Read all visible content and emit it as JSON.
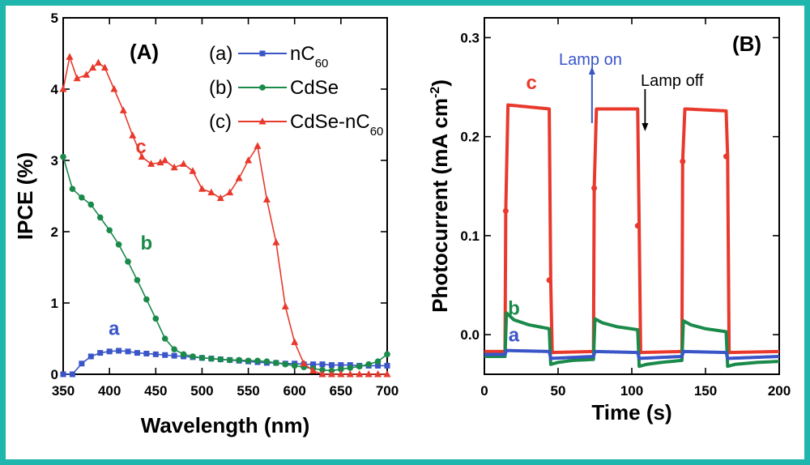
{
  "chart_data": [
    {
      "type": "line",
      "panel_label": "(A)",
      "xlabel": "Wavelength (nm)",
      "ylabel": "IPCE (%)",
      "xlim": [
        350,
        700
      ],
      "ylim": [
        0,
        5
      ],
      "xticks": [
        350,
        400,
        450,
        500,
        550,
        600,
        650,
        700
      ],
      "yticks": [
        0,
        1,
        2,
        3,
        4,
        5
      ],
      "legend_placement": "top-right",
      "series": [
        {
          "name": "nC60",
          "legend_prefix": "(a)",
          "legend_main": "nC",
          "legend_sub": "60",
          "curve_label": "a",
          "color": "#3a55c8",
          "marker": "square",
          "label_pos": [
            405,
            0.55
          ],
          "x": [
            350,
            360,
            370,
            380,
            390,
            400,
            410,
            420,
            430,
            440,
            450,
            460,
            470,
            480,
            490,
            500,
            510,
            520,
            530,
            540,
            550,
            560,
            570,
            580,
            590,
            600,
            610,
            620,
            630,
            640,
            650,
            660,
            670,
            680,
            690,
            700
          ],
          "values": [
            0.0,
            0.0,
            0.15,
            0.25,
            0.3,
            0.32,
            0.33,
            0.32,
            0.3,
            0.29,
            0.28,
            0.27,
            0.26,
            0.25,
            0.24,
            0.23,
            0.22,
            0.21,
            0.2,
            0.19,
            0.18,
            0.17,
            0.16,
            0.16,
            0.15,
            0.15,
            0.14,
            0.14,
            0.14,
            0.13,
            0.13,
            0.13,
            0.12,
            0.12,
            0.12,
            0.12
          ]
        },
        {
          "name": "CdSe",
          "legend_prefix": "(b)",
          "legend_main": "CdSe",
          "legend_sub": "",
          "curve_label": "b",
          "color": "#1a8a4a",
          "marker": "circle",
          "label_pos": [
            440,
            1.75
          ],
          "x": [
            350,
            360,
            370,
            380,
            390,
            400,
            410,
            420,
            430,
            440,
            450,
            460,
            470,
            480,
            490,
            500,
            510,
            520,
            530,
            540,
            550,
            560,
            570,
            580,
            590,
            600,
            610,
            620,
            630,
            640,
            650,
            660,
            670,
            680,
            690,
            700
          ],
          "values": [
            3.05,
            2.6,
            2.48,
            2.38,
            2.2,
            2.02,
            1.82,
            1.58,
            1.32,
            1.05,
            0.78,
            0.5,
            0.35,
            0.28,
            0.25,
            0.23,
            0.22,
            0.21,
            0.2,
            0.2,
            0.19,
            0.19,
            0.18,
            0.16,
            0.14,
            0.12,
            0.1,
            0.08,
            0.06,
            0.05,
            0.07,
            0.09,
            0.11,
            0.14,
            0.18,
            0.28
          ]
        },
        {
          "name": "CdSe-nC60",
          "legend_prefix": "(c)",
          "legend_main": "CdSe-nC",
          "legend_sub": "60",
          "curve_label": "c",
          "color": "#e8392c",
          "marker": "triangle",
          "label_pos": [
            434,
            3.1
          ],
          "x": [
            350,
            357,
            365,
            375,
            382,
            388,
            395,
            405,
            415,
            425,
            435,
            445,
            455,
            460,
            470,
            480,
            490,
            500,
            510,
            520,
            530,
            540,
            550,
            560,
            570,
            580,
            590,
            600,
            610,
            620,
            630,
            640,
            650,
            660,
            670,
            680,
            690,
            700
          ],
          "values": [
            4.0,
            4.45,
            4.15,
            4.2,
            4.3,
            4.37,
            4.3,
            4.0,
            3.7,
            3.35,
            3.05,
            2.95,
            2.97,
            3.0,
            2.9,
            2.95,
            2.85,
            2.6,
            2.55,
            2.47,
            2.55,
            2.75,
            3.0,
            3.2,
            2.45,
            1.85,
            0.95,
            0.45,
            0.15,
            0.05,
            0.0,
            0.0,
            0.0,
            0.0,
            0.0,
            0.0,
            0.0,
            0.0
          ]
        }
      ]
    },
    {
      "type": "line",
      "panel_label": "(B)",
      "xlabel": "Time (s)",
      "ylabel": "Photocurrent (mA cm-2)",
      "xlim": [
        0,
        200
      ],
      "ylim": [
        -0.04,
        0.32
      ],
      "xticks": [
        0,
        50,
        100,
        150,
        200
      ],
      "yticks": [
        0.0,
        0.1,
        0.2,
        0.3
      ],
      "annotations": {
        "lamp_on": "Lamp on",
        "lamp_off": "Lamp off",
        "lamp_on_color": "#3a55c8",
        "lamp_off_color": "#000000"
      },
      "series": [
        {
          "curve_label": "c",
          "color": "#e8392c",
          "label_pos": [
            32,
            0.248
          ],
          "x": [
            0,
            14,
            14.5,
            16,
            44,
            45,
            46,
            74,
            74.5,
            76,
            104,
            105,
            106,
            134,
            134.5,
            136,
            164,
            165,
            166,
            200
          ],
          "values": [
            -0.017,
            -0.017,
            0.125,
            0.232,
            0.228,
            0.055,
            -0.018,
            -0.017,
            0.148,
            0.228,
            0.228,
            0.11,
            -0.018,
            -0.017,
            0.175,
            0.228,
            0.226,
            0.18,
            -0.018,
            -0.017
          ]
        },
        {
          "curve_label": "b",
          "color": "#1a8a4a",
          "label_pos": [
            20,
            0.02
          ],
          "x": [
            0,
            14,
            15,
            20,
            30,
            44,
            45,
            50,
            60,
            74,
            75,
            80,
            90,
            104,
            105,
            110,
            120,
            134,
            135,
            140,
            150,
            164,
            165,
            170,
            185,
            200
          ],
          "values": [
            -0.022,
            -0.022,
            0.022,
            0.015,
            0.01,
            0.006,
            -0.03,
            -0.028,
            -0.026,
            -0.025,
            0.016,
            0.012,
            0.008,
            0.005,
            -0.032,
            -0.03,
            -0.028,
            -0.026,
            0.014,
            0.01,
            0.006,
            0.003,
            -0.032,
            -0.03,
            -0.028,
            -0.027
          ]
        },
        {
          "curve_label": "a",
          "color": "#3a55c8",
          "label_pos": [
            20,
            -0.007
          ],
          "x": [
            0,
            14,
            15,
            44,
            45,
            74,
            75,
            104,
            105,
            134,
            135,
            164,
            165,
            200
          ],
          "values": [
            -0.02,
            -0.02,
            -0.016,
            -0.017,
            -0.024,
            -0.022,
            -0.017,
            -0.018,
            -0.024,
            -0.022,
            -0.017,
            -0.018,
            -0.024,
            -0.022
          ]
        }
      ]
    }
  ]
}
